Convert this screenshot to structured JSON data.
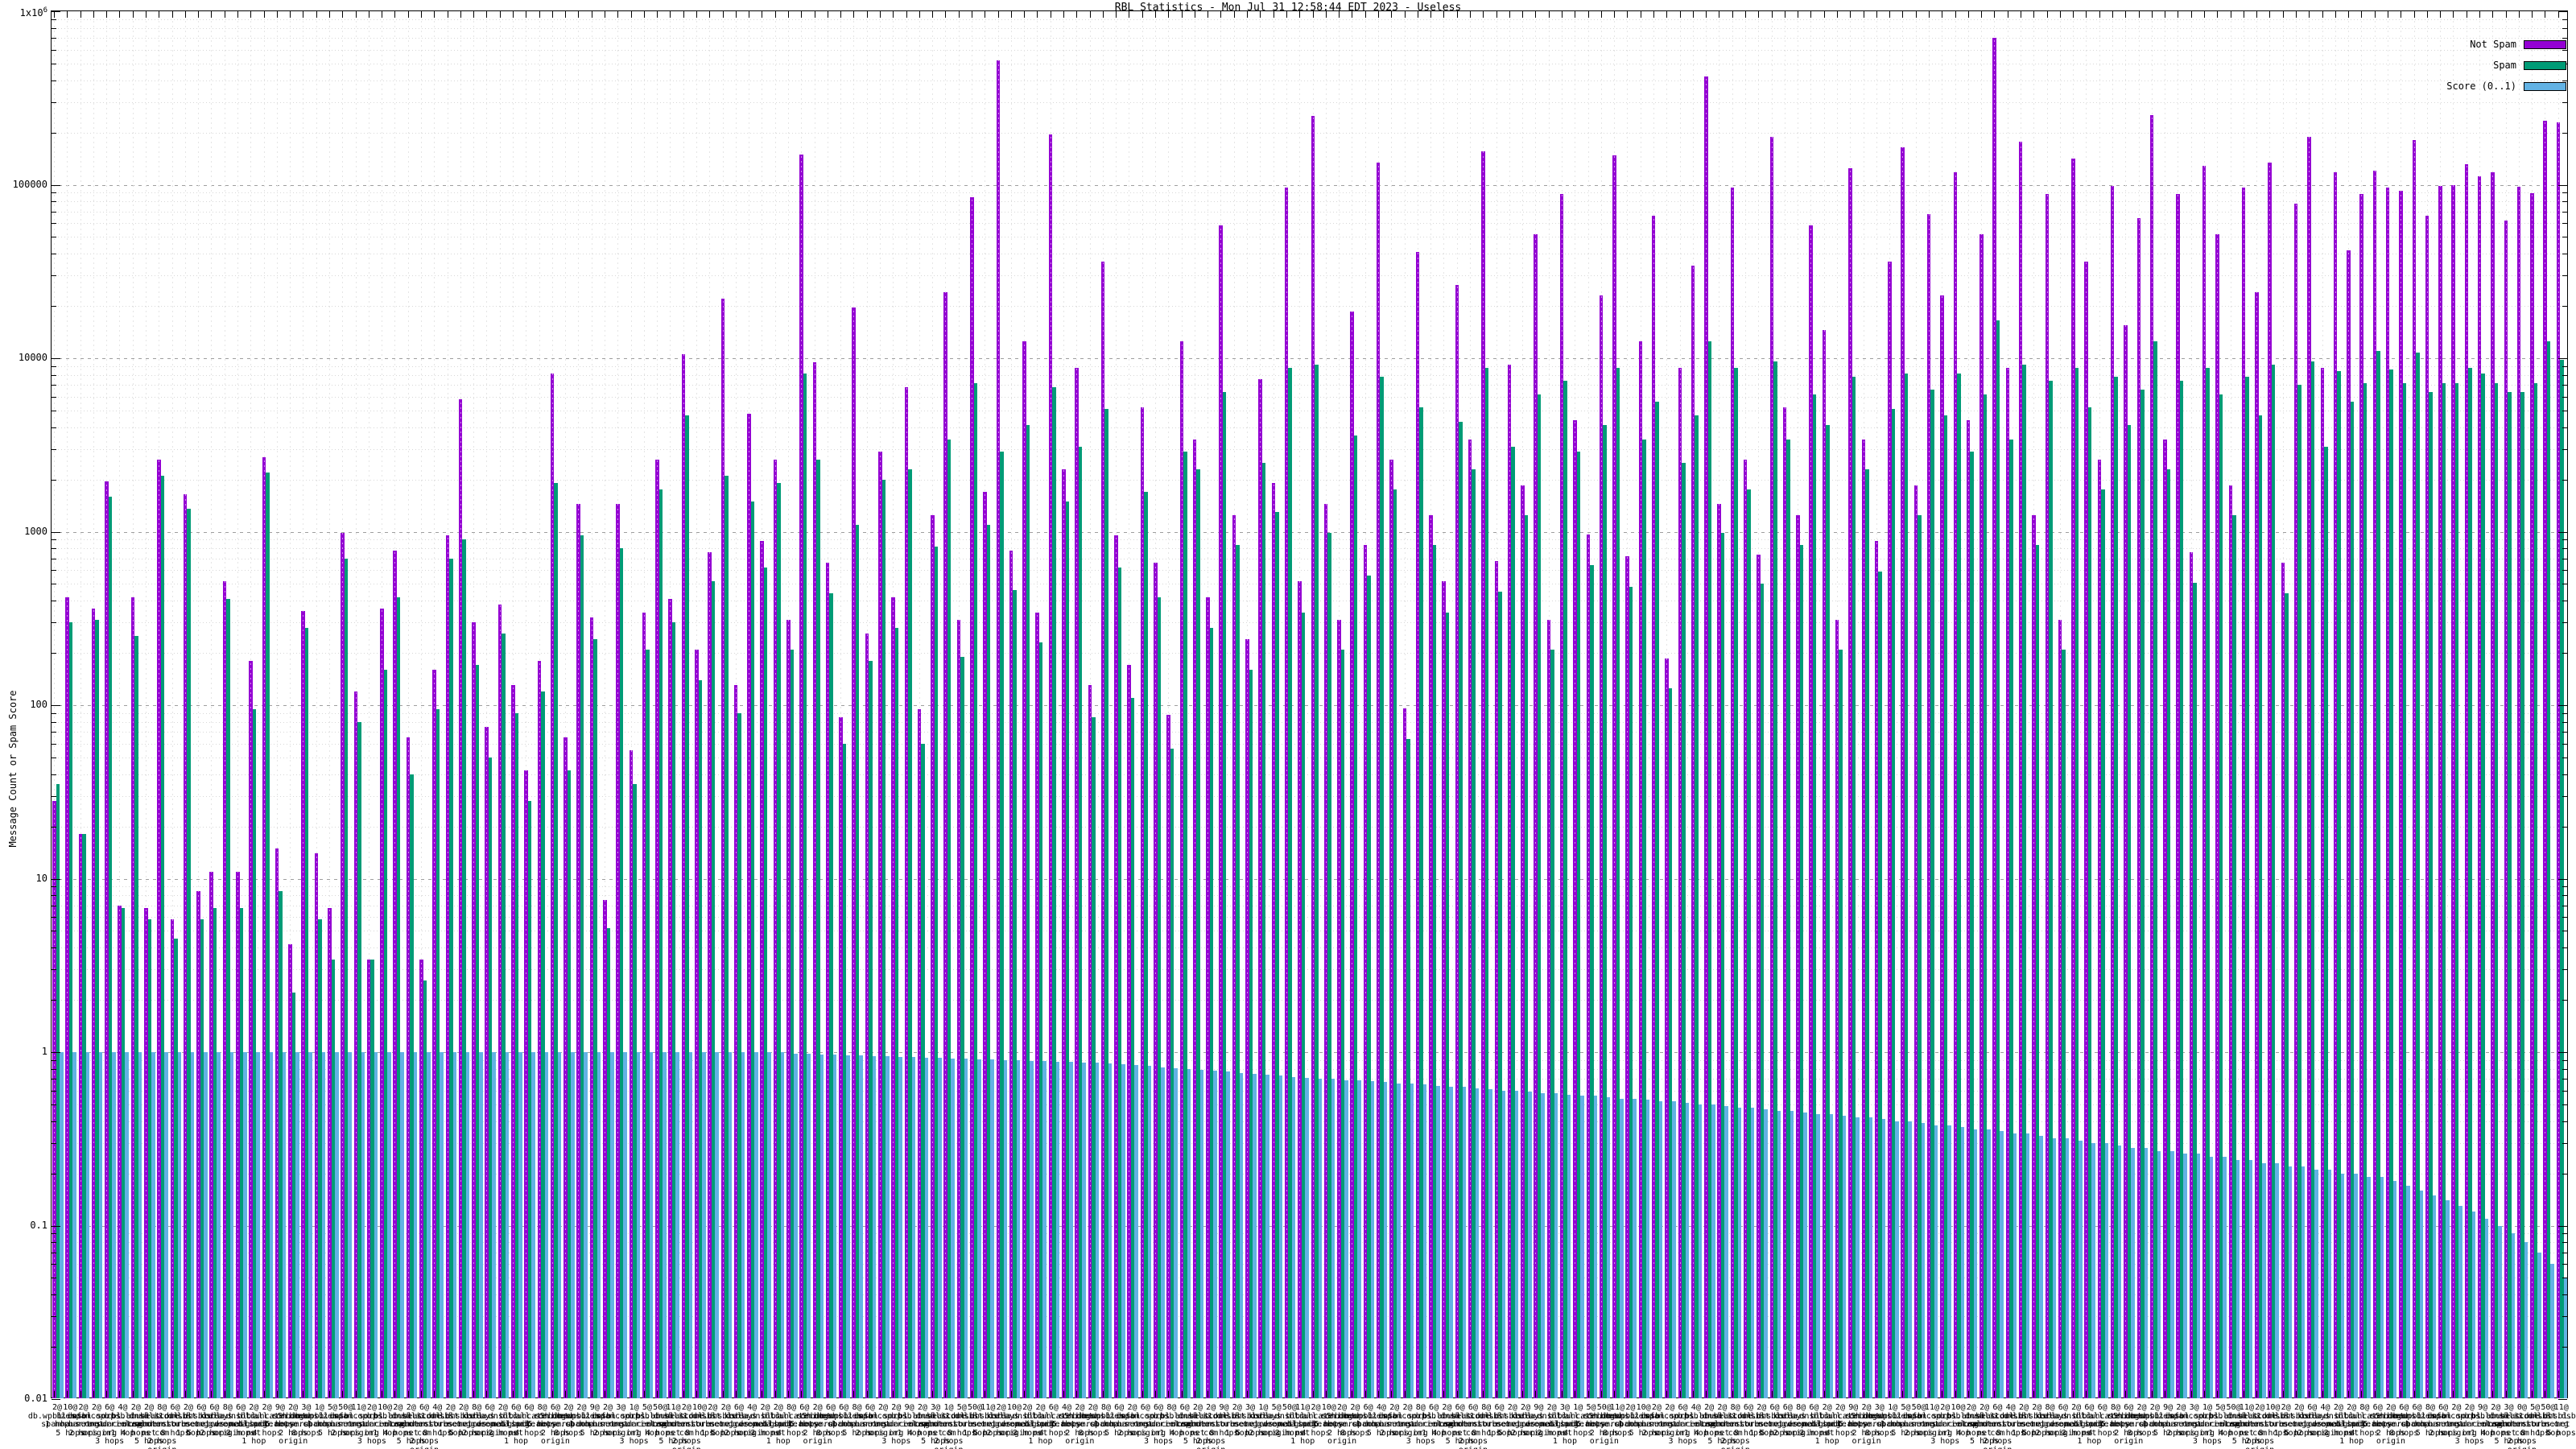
{
  "page": {
    "title": "RBL Statistics - Mon Jul 31 12:58:44 EDT 2023 - Useless"
  },
  "chart_data": {
    "type": "bar",
    "title": "RBL Statistics - Mon Jul 31 12:58:44 EDT 2023 - Useless",
    "xlabel": "",
    "ylabel": "Message Count or Spam Score",
    "yscale": "log",
    "ylim": [
      0.01,
      1000000
    ],
    "grid": true,
    "legend_position": "top-right",
    "yticks": [
      {
        "label": "1x10",
        "sup": "6",
        "value": 1000000
      },
      {
        "label": "100000",
        "value": 100000
      },
      {
        "label": "10000",
        "value": 10000
      },
      {
        "label": "1000",
        "value": 1000
      },
      {
        "label": "100",
        "value": 100
      },
      {
        "label": "10",
        "value": 10
      },
      {
        "label": "1",
        "value": 1
      },
      {
        "label": "0.1",
        "value": 0.1
      },
      {
        "label": "0.01",
        "value": 0.01
      }
    ],
    "series": [
      {
        "name": "Not Spam",
        "color": "#9400d3",
        "values": [
          28,
          420,
          18,
          360,
          1950,
          7,
          420,
          6.8,
          2600,
          5.8,
          1650,
          8.5,
          11,
          520,
          11,
          180,
          2700,
          15,
          4.2,
          350,
          14,
          6.8,
          980,
          120,
          3.4,
          360,
          780,
          65,
          3.4,
          160,
          950,
          5800,
          300,
          75,
          380,
          130,
          42,
          180,
          8200,
          65,
          1450,
          320,
          7.5,
          1450,
          55,
          340,
          2600,
          410,
          10500,
          210,
          760,
          22000,
          130,
          4800,
          880,
          2600,
          310,
          150000,
          9500,
          660,
          85,
          19500,
          260,
          2900,
          420,
          6800,
          95,
          1250,
          24000,
          310,
          85000,
          1700,
          520000,
          780,
          12500,
          340,
          195000,
          2300,
          8800,
          130,
          36000,
          950,
          170,
          5200,
          660,
          88,
          12500,
          3400,
          420,
          58000,
          1250,
          240,
          7600,
          1900,
          96000,
          520,
          248000,
          1450,
          310,
          18500,
          840,
          134000,
          2600,
          96,
          41000,
          1250,
          520,
          26500,
          3400,
          155000,
          680,
          9200,
          1850,
          52000,
          310,
          88000,
          4400,
          960,
          23000,
          148000,
          720,
          12500,
          66000,
          185,
          8800,
          34000,
          420000,
          1450,
          96000,
          2600,
          740,
          188000,
          5200,
          1250,
          58000,
          14500,
          310,
          124000,
          3400,
          880,
          36000,
          165000,
          1850,
          68000,
          23000,
          118000,
          4400,
          52000,
          700000,
          8800,
          178000,
          1250,
          88000,
          310,
          142000,
          36000,
          2600,
          98000,
          15500,
          64000,
          252000,
          3400,
          88000,
          760,
          128000,
          52000,
          1850,
          96000,
          24000,
          134000,
          660,
          78000,
          188000,
          8800,
          118000,
          42000,
          88000,
          120000,
          96000,
          92000,
          180000,
          66000,
          98000,
          99000,
          132000,
          112000,
          118000,
          62000,
          97000,
          89000,
          235000,
          230000
        ]
      },
      {
        "name": "Spam",
        "color": "#009b76",
        "values": [
          35,
          300,
          18,
          310,
          1600,
          6.8,
          250,
          5.8,
          2100,
          4.5,
          1350,
          5.8,
          6.8,
          410,
          6.8,
          95,
          2200,
          8.5,
          2.2,
          280,
          5.8,
          3.4,
          700,
          80,
          3.4,
          160,
          420,
          40,
          2.6,
          95,
          700,
          900,
          170,
          50,
          260,
          90,
          28,
          120,
          1900,
          42,
          950,
          240,
          5.2,
          800,
          35,
          210,
          1750,
          300,
          4700,
          140,
          520,
          2100,
          90,
          1500,
          620,
          1900,
          210,
          8200,
          2600,
          440,
          60,
          1100,
          180,
          2000,
          280,
          2300,
          60,
          820,
          3400,
          190,
          7200,
          1100,
          2900,
          460,
          4100,
          230,
          6800,
          1500,
          3100,
          85,
          5100,
          620,
          110,
          1700,
          420,
          56,
          2900,
          2300,
          280,
          6400,
          840,
          160,
          2500,
          1300,
          8800,
          340,
          9200,
          980,
          210,
          3600,
          560,
          7800,
          1750,
          64,
          5200,
          840,
          340,
          4300,
          2300,
          8800,
          450,
          3100,
          1250,
          6200,
          210,
          7400,
          2900,
          640,
          4100,
          8800,
          480,
          3400,
          5600,
          125,
          2500,
          4700,
          12500,
          980,
          8800,
          1750,
          500,
          9600,
          3400,
          840,
          6200,
          4100,
          210,
          7800,
          2300,
          590,
          5100,
          8200,
          1250,
          6600,
          4700,
          8200,
          2900,
          6200,
          16500,
          3400,
          9200,
          840,
          7400,
          210,
          8800,
          5200,
          1750,
          7800,
          4100,
          6600,
          12500,
          2300,
          7400,
          510,
          8800,
          6200,
          1250,
          7800,
          4700,
          9200,
          440,
          7000,
          9600,
          3100,
          8400,
          5600,
          7200,
          11000,
          8600,
          7200,
          10800,
          6400,
          7200,
          7200,
          8800,
          8200,
          7200,
          6400,
          6400,
          7200,
          12500,
          9800
        ]
      },
      {
        "name": "Score (0..1)",
        "color": "#62b2e4",
        "values": [
          1,
          1,
          1,
          1,
          1,
          1,
          1,
          1,
          1,
          1,
          1,
          1,
          1,
          1,
          1,
          1,
          1,
          1,
          1,
          1,
          1,
          1,
          1,
          1,
          1,
          1,
          1,
          1,
          1,
          1,
          1,
          1,
          1,
          1,
          1,
          1,
          1,
          1,
          1,
          1,
          1,
          1,
          1,
          1,
          1,
          1,
          1,
          1,
          1,
          1,
          1,
          1,
          1,
          1,
          1,
          1,
          0.98,
          0.98,
          0.97,
          0.97,
          0.96,
          0.96,
          0.95,
          0.95,
          0.94,
          0.94,
          0.93,
          0.93,
          0.92,
          0.92,
          0.91,
          0.91,
          0.9,
          0.9,
          0.89,
          0.89,
          0.88,
          0.88,
          0.87,
          0.87,
          0.86,
          0.85,
          0.84,
          0.83,
          0.82,
          0.81,
          0.8,
          0.79,
          0.78,
          0.77,
          0.76,
          0.75,
          0.74,
          0.73,
          0.72,
          0.71,
          0.7,
          0.7,
          0.69,
          0.69,
          0.68,
          0.67,
          0.66,
          0.66,
          0.65,
          0.64,
          0.63,
          0.63,
          0.62,
          0.61,
          0.6,
          0.6,
          0.59,
          0.58,
          0.58,
          0.57,
          0.56,
          0.56,
          0.55,
          0.54,
          0.54,
          0.53,
          0.52,
          0.52,
          0.51,
          0.5,
          0.5,
          0.49,
          0.48,
          0.48,
          0.47,
          0.46,
          0.46,
          0.45,
          0.44,
          0.44,
          0.43,
          0.42,
          0.42,
          0.41,
          0.4,
          0.4,
          0.39,
          0.38,
          0.38,
          0.37,
          0.36,
          0.36,
          0.35,
          0.34,
          0.34,
          0.33,
          0.32,
          0.32,
          0.31,
          0.3,
          0.3,
          0.29,
          0.28,
          0.28,
          0.27,
          0.27,
          0.26,
          0.26,
          0.25,
          0.25,
          0.24,
          0.24,
          0.23,
          0.23,
          0.22,
          0.22,
          0.21,
          0.21,
          0.2,
          0.2,
          0.19,
          0.19,
          0.18,
          0.17,
          0.16,
          0.15,
          0.14,
          0.13,
          0.12,
          0.11,
          0.1,
          0.09,
          0.08,
          0.07,
          0.06,
          0.05
        ]
      }
    ],
    "categories": [
      "2@ db.wpbl.info 1 hop",
      "10@ zen.spamhaus.org 5 hops",
      "2@ bl.spamcop.net 2 hops",
      "2@ dnsbl.sorbs.net origin",
      "6@ b.barracudacentral.org 3 hops",
      "4@ psbl.surriel.com 1 hop",
      "2@ cbl.abuseat.org 4 hops",
      "2@ dnsbl-1.uceprotect.net 5 hops",
      "8@ bl.score.senderscore.com 2 hops origin",
      "6@ ix.dnsbl.manitu.net 8 hops",
      "2@ dul.dnsbl.sorbs.net 1 hop",
      "6@ list.dsbl.org 5 hops",
      "6@ korea.services.net 2 hops",
      "8@ relays.bl.gweep.ca origin",
      "6@ dnsbl.dronebl.org 3 hops",
      "2@ bl.mailspike.net 1 hop",
      "2@ truncate.gbudb.net 4 hops",
      "9@ all.s5h.net 5 hops",
      "2@ combined.abuse.ch 2 hops origin",
      "3@ bogons.cymru.com 8 hops",
      "1@ db.wpbl.info 1 hop",
      "5@ zen.spamhaus.org 5 hops",
      "50@ bl.spamcop.net 2 hops",
      "11@ dnsbl.sorbs.net origin",
      "2@ b.barracudacentral.org 3 hops",
      "10@ psbl.surriel.com 1 hop",
      "2@ cbl.abuseat.org 4 hops",
      "2@ dnsbl-1.uceprotect.net 5 hops",
      "6@ bl.score.senderscore.com 2 hops origin",
      "4@ ix.dnsbl.manitu.net 8 hops",
      "2@ dul.dnsbl.sorbs.net 1 hop",
      "2@ list.dsbl.org 5 hops",
      "8@ korea.services.net 2 hops",
      "6@ relays.bl.gweep.ca origin",
      "2@ dnsbl.dronebl.org 3 hops",
      "6@ bl.mailspike.net 1 hop",
      "6@ truncate.gbudb.net 4 hops",
      "8@ all.s5h.net 5 hops",
      "6@ combined.abuse.ch 2 hops origin",
      "2@ bogons.cymru.com 8 hops",
      "2@ db.wpbl.info 1 hop",
      "9@ zen.spamhaus.org 5 hops",
      "2@ bl.spamcop.net 2 hops",
      "3@ dnsbl.sorbs.net origin",
      "1@ b.barracudacentral.org 3 hops",
      "5@ psbl.surriel.com 1 hop",
      "50@ cbl.abuseat.org 4 hops",
      "11@ dnsbl-1.uceprotect.net 5 hops",
      "2@ bl.score.senderscore.com 2 hops origin",
      "10@ ix.dnsbl.manitu.net 8 hops",
      "2@ dul.dnsbl.sorbs.net 1 hop",
      "2@ list.dsbl.org 5 hops",
      "6@ korea.services.net 2 hops",
      "4@ relays.bl.gweep.ca origin",
      "2@ dnsbl.dronebl.org 3 hops",
      "2@ bl.mailspike.net 1 hop",
      "8@ truncate.gbudb.net 4 hops",
      "6@ all.s5h.net 5 hops",
      "2@ combined.abuse.ch 2 hops origin",
      "6@ bogons.cymru.com 8 hops",
      "6@ db.wpbl.info 1 hop",
      "8@ zen.spamhaus.org 5 hops",
      "6@ bl.spamcop.net 2 hops",
      "2@ dnsbl.sorbs.net origin",
      "2@ b.barracudacentral.org 3 hops",
      "9@ psbl.surriel.com 1 hop",
      "2@ cbl.abuseat.org 4 hops",
      "3@ dnsbl-1.uceprotect.net 5 hops",
      "1@ bl.score.senderscore.com 2 hops origin",
      "5@ ix.dnsbl.manitu.net 8 hops",
      "50@ dul.dnsbl.sorbs.net 1 hop",
      "11@ list.dsbl.org 5 hops",
      "2@ korea.services.net 2 hops",
      "10@ relays.bl.gweep.ca origin",
      "2@ dnsbl.dronebl.org 3 hops",
      "2@ bl.mailspike.net 1 hop",
      "6@ truncate.gbudb.net 4 hops",
      "4@ all.s5h.net 5 hops",
      "2@ combined.abuse.ch 2 hops origin",
      "2@ bogons.cymru.com 8 hops",
      "8@ db.wpbl.info 1 hop",
      "6@ zen.spamhaus.org 5 hops",
      "2@ bl.spamcop.net 2 hops",
      "6@ dnsbl.sorbs.net origin",
      "6@ b.barracudacentral.org 3 hops",
      "8@ psbl.surriel.com 1 hop",
      "6@ cbl.abuseat.org 4 hops",
      "2@ dnsbl-1.uceprotect.net 5 hops",
      "2@ bl.score.senderscore.com 2 hops origin",
      "9@ ix.dnsbl.manitu.net 8 hops",
      "2@ dul.dnsbl.sorbs.net 1 hop",
      "3@ list.dsbl.org 5 hops",
      "1@ korea.services.net 2 hops",
      "5@ relays.bl.gweep.ca origin",
      "50@ dnsbl.dronebl.org 3 hops",
      "11@ bl.mailspike.net 1 hop",
      "2@ truncate.gbudb.net 4 hops",
      "10@ all.s5h.net 5 hops",
      "2@ combined.abuse.ch 2 hops origin",
      "2@ bogons.cymru.com 8 hops",
      "6@ db.wpbl.info 1 hop",
      "4@ zen.spamhaus.org 5 hops",
      "2@ bl.spamcop.net 2 hops",
      "2@ dnsbl.sorbs.net origin",
      "8@ b.barracudacentral.org 3 hops",
      "6@ psbl.surriel.com 1 hop",
      "2@ cbl.abuseat.org 4 hops",
      "6@ dnsbl-1.uceprotect.net 5 hops",
      "6@ bl.score.senderscore.com 2 hops origin",
      "8@ ix.dnsbl.manitu.net 8 hops",
      "6@ dul.dnsbl.sorbs.net 1 hop",
      "2@ list.dsbl.org 5 hops",
      "2@ korea.services.net 2 hops",
      "9@ relays.bl.gweep.ca origin",
      "2@ dnsbl.dronebl.org 3 hops",
      "3@ bl.mailspike.net 1 hop",
      "1@ truncate.gbudb.net 4 hops",
      "5@ all.s5h.net 5 hops",
      "50@ combined.abuse.ch 2 hops origin",
      "11@ bogons.cymru.com 8 hops",
      "2@ db.wpbl.info 1 hop",
      "10@ zen.spamhaus.org 5 hops",
      "2@ bl.spamcop.net 2 hops",
      "2@ dnsbl.sorbs.net origin",
      "6@ b.barracudacentral.org 3 hops",
      "4@ psbl.surriel.com 1 hop",
      "2@ cbl.abuseat.org 4 hops",
      "2@ dnsbl-1.uceprotect.net 5 hops",
      "8@ bl.score.senderscore.com 2 hops origin",
      "6@ ix.dnsbl.manitu.net 8 hops",
      "2@ dul.dnsbl.sorbs.net 1 hop",
      "6@ list.dsbl.org 5 hops",
      "6@ korea.services.net 2 hops",
      "8@ relays.bl.gweep.ca origin",
      "6@ dnsbl.dronebl.org 3 hops",
      "2@ bl.mailspike.net 1 hop",
      "2@ truncate.gbudb.net 4 hops",
      "9@ all.s5h.net 5 hops",
      "2@ combined.abuse.ch 2 hops origin",
      "3@ bogons.cymru.com 8 hops",
      "1@ db.wpbl.info 1 hop",
      "5@ zen.spamhaus.org 5 hops",
      "50@ bl.spamcop.net 2 hops",
      "11@ dnsbl.sorbs.net origin",
      "2@ b.barracudacentral.org 3 hops",
      "10@ psbl.surriel.com 1 hop",
      "2@ cbl.abuseat.org 4 hops",
      "2@ dnsbl-1.uceprotect.net 5 hops",
      "6@ bl.score.senderscore.com 2 hops origin",
      "4@ ix.dnsbl.manitu.net 8 hops",
      "2@ dul.dnsbl.sorbs.net 1 hop",
      "2@ list.dsbl.org 5 hops",
      "8@ korea.services.net 2 hops",
      "6@ relays.bl.gweep.ca origin",
      "2@ dnsbl.dronebl.org 3 hops",
      "6@ bl.mailspike.net 1 hop",
      "6@ truncate.gbudb.net 4 hops",
      "8@ all.s5h.net 5 hops",
      "6@ combined.abuse.ch 2 hops origin",
      "2@ bogons.cymru.com 8 hops",
      "2@ db.wpbl.info 1 hop",
      "9@ zen.spamhaus.org 5 hops",
      "2@ bl.spamcop.net 2 hops",
      "3@ dnsbl.sorbs.net origin",
      "1@ b.barracudacentral.org 3 hops",
      "5@ psbl.surriel.com 1 hop",
      "50@ cbl.abuseat.org 4 hops",
      "11@ dnsbl-1.uceprotect.net 5 hops",
      "2@ bl.score.senderscore.com 2 hops origin",
      "10@ ix.dnsbl.manitu.net 8 hops",
      "2@ dul.dnsbl.sorbs.net 1 hop",
      "2@ list.dsbl.org 5 hops",
      "6@ korea.services.net 2 hops",
      "4@ relays.bl.gweep.ca origin",
      "2@ dnsbl.dronebl.org 3 hops",
      "2@ bl.mailspike.net 1 hop",
      "8@ truncate.gbudb.net 4 hops",
      "6@ all.s5h.net 5 hops",
      "2@ combined.abuse.ch 2 hops origin",
      "6@ bogons.cymru.com 8 hops",
      "6@ db.wpbl.info 1 hop",
      "8@ zen.spamhaus.org 5 hops",
      "6@ bl.spamcop.net 2 hops",
      "2@ dnsbl.sorbs.net origin",
      "2@ b.barracudacentral.org 3 hops",
      "9@ psbl.surriel.com 1 hop",
      "2@ cbl.abuseat.org 4 hops",
      "3@ dnsbl-1.uceprotect.net 5 hops",
      "0@ bl.score.senderscore.com 2 hops origin",
      "5@ ix.dnsbl.manitu.net 8 hops",
      "50@ dul.dnsbl.sorbs.net 1 hop",
      "11@ list.dsbl.org 5 hops"
    ]
  }
}
